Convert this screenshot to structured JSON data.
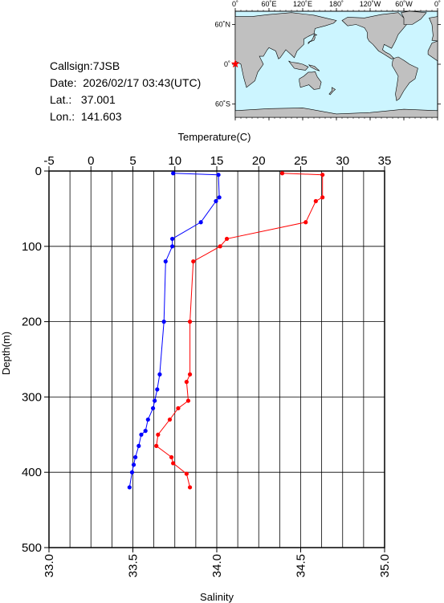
{
  "station": {
    "callsign": "Callsign:7JSB",
    "date": "Date:  2026/02/17 03:43(UTC)",
    "lat": "Lat.:   37.001",
    "lon": "Lon.:  141.603"
  },
  "map": {
    "lon_labels": [
      "0˚",
      "60˚E",
      "120˚E",
      "180˚",
      "120˚W",
      "60˚W",
      "0˚"
    ],
    "lat_labels": [
      "60˚N",
      "0˚",
      "60˚S"
    ],
    "ocean_color": "#ccf5ff",
    "land_color": "#c0c0c0",
    "marker_color": "#ff0000",
    "marker": "star-icon"
  },
  "chart_data": {
    "type": "line",
    "title": "",
    "top_axis": {
      "label": "Temperature(C)",
      "range": [
        -5,
        35
      ],
      "ticks": [
        "-5",
        "0",
        "5",
        "10",
        "15",
        "20",
        "25",
        "30",
        "35"
      ]
    },
    "bottom_axis": {
      "label": "Salinity",
      "range": [
        33.0,
        35.0
      ],
      "ticks": [
        "33.0",
        "33.5",
        "34.0",
        "34.5",
        "35.0"
      ]
    },
    "left_axis": {
      "label": "Depth(m)",
      "range": [
        0,
        500
      ],
      "inverted": true,
      "ticks": [
        "0",
        "100",
        "200",
        "300",
        "400",
        "500"
      ]
    },
    "grid": true,
    "series": [
      {
        "axis": "temperature",
        "color": "#0000ff",
        "points": [
          {
            "depth": 3,
            "value": 9.8
          },
          {
            "depth": 5,
            "value": 15.2
          },
          {
            "depth": 35,
            "value": 15.3
          },
          {
            "depth": 40,
            "value": 14.9
          },
          {
            "depth": 68,
            "value": 13.1
          },
          {
            "depth": 90,
            "value": 9.7
          },
          {
            "depth": 100,
            "value": 9.7
          },
          {
            "depth": 120,
            "value": 8.9
          },
          {
            "depth": 200,
            "value": 8.7
          },
          {
            "depth": 270,
            "value": 8.2
          },
          {
            "depth": 290,
            "value": 7.9
          },
          {
            "depth": 305,
            "value": 7.6
          },
          {
            "depth": 315,
            "value": 7.4
          },
          {
            "depth": 330,
            "value": 6.8
          },
          {
            "depth": 345,
            "value": 6.5
          },
          {
            "depth": 350,
            "value": 6.0
          },
          {
            "depth": 365,
            "value": 5.7
          },
          {
            "depth": 380,
            "value": 5.3
          },
          {
            "depth": 390,
            "value": 5.1
          },
          {
            "depth": 400,
            "value": 4.9
          },
          {
            "depth": 420,
            "value": 4.6
          }
        ]
      },
      {
        "axis": "salinity",
        "color": "#ff0000",
        "points": [
          {
            "depth": 3,
            "value": 34.39
          },
          {
            "depth": 5,
            "value": 34.63
          },
          {
            "depth": 35,
            "value": 34.63
          },
          {
            "depth": 40,
            "value": 34.59
          },
          {
            "depth": 68,
            "value": 34.53
          },
          {
            "depth": 90,
            "value": 34.06
          },
          {
            "depth": 100,
            "value": 34.02
          },
          {
            "depth": 120,
            "value": 33.86
          },
          {
            "depth": 200,
            "value": 33.84
          },
          {
            "depth": 270,
            "value": 33.84
          },
          {
            "depth": 280,
            "value": 33.82
          },
          {
            "depth": 305,
            "value": 33.83
          },
          {
            "depth": 315,
            "value": 33.77
          },
          {
            "depth": 330,
            "value": 33.72
          },
          {
            "depth": 350,
            "value": 33.65
          },
          {
            "depth": 365,
            "value": 33.64
          },
          {
            "depth": 380,
            "value": 33.73
          },
          {
            "depth": 388,
            "value": 33.74
          },
          {
            "depth": 402,
            "value": 33.82
          },
          {
            "depth": 420,
            "value": 33.84
          }
        ]
      }
    ]
  }
}
